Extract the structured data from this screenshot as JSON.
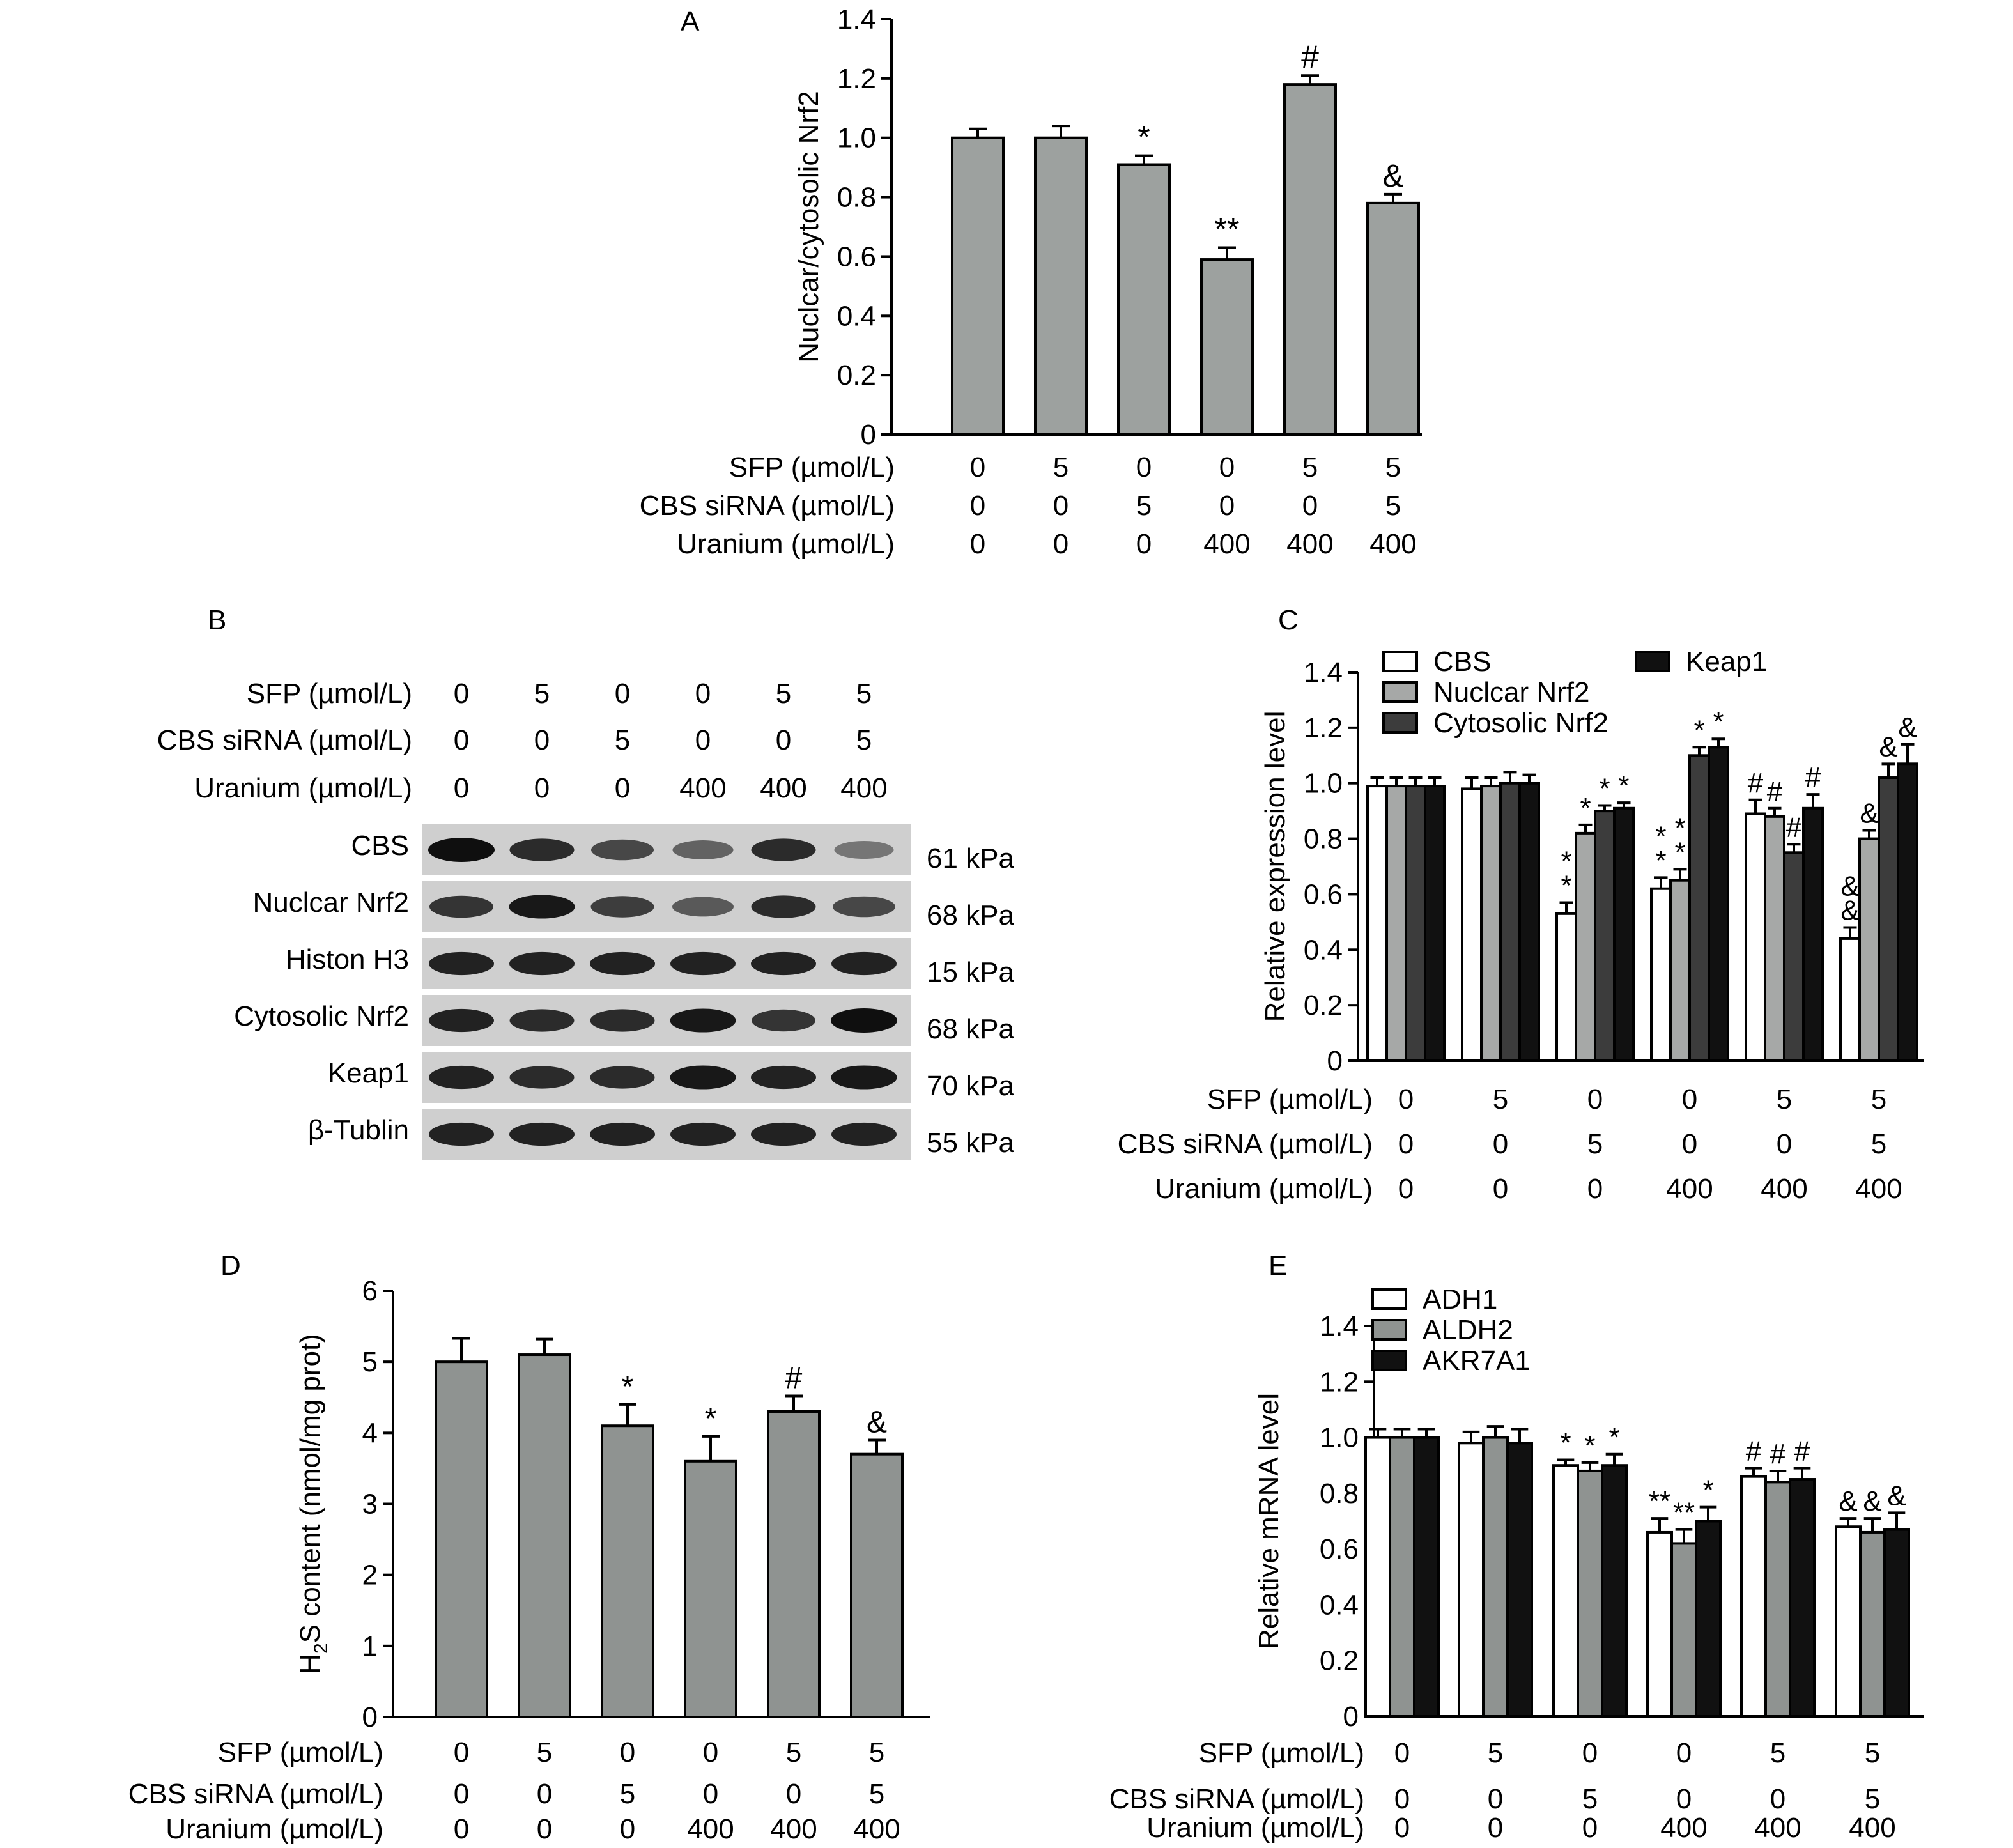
{
  "colors": {
    "bar_gray": "#9da19f",
    "white": "#ffffff",
    "light_gray": "#a6a8a7",
    "dark_gray": "#3c3c3c",
    "black": "#111111",
    "mid_gray": "#8f9391"
  },
  "treatments": {
    "rows": [
      {
        "label": "SFP (µmol/L)",
        "values": [
          "0",
          "5",
          "0",
          "0",
          "5",
          "5"
        ]
      },
      {
        "label": "CBS siRNA (µmol/L)",
        "values": [
          "0",
          "0",
          "5",
          "0",
          "0",
          "5"
        ]
      },
      {
        "label": "Uranium (µmol/L)",
        "values": [
          "0",
          "0",
          "0",
          "400",
          "400",
          "400"
        ]
      }
    ]
  },
  "panels": {
    "A": {
      "letter": "A"
    },
    "B": {
      "letter": "B"
    },
    "C": {
      "letter": "C"
    },
    "D": {
      "letter": "D"
    },
    "E": {
      "letter": "E"
    }
  },
  "western_blot": {
    "bands": [
      {
        "name": "CBS",
        "kda": "61 kPa",
        "intensity": [
          1.0,
          0.85,
          0.7,
          0.55,
          0.85,
          0.45
        ]
      },
      {
        "name": "Nuclcar Nrf2",
        "kda": "68 kPa",
        "intensity": [
          0.8,
          0.95,
          0.75,
          0.6,
          0.85,
          0.7
        ]
      },
      {
        "name": "Histon H3",
        "kda": "15 kPa",
        "intensity": [
          0.9,
          0.9,
          0.9,
          0.9,
          0.9,
          0.9
        ]
      },
      {
        "name": "Cytosolic Nrf2",
        "kda": "68 kPa",
        "intensity": [
          0.9,
          0.85,
          0.85,
          0.95,
          0.8,
          1.0
        ]
      },
      {
        "name": "Keap1",
        "kda": "70 kPa",
        "intensity": [
          0.9,
          0.85,
          0.85,
          0.95,
          0.9,
          0.95
        ]
      },
      {
        "name": "β-Tublin",
        "kda": "55 kPa",
        "intensity": [
          0.9,
          0.9,
          0.9,
          0.9,
          0.9,
          0.9
        ]
      }
    ]
  },
  "chart_data": [
    {
      "panel": "A",
      "type": "bar",
      "ylabel": "Nuclcar/cytosolic Nrf2",
      "ylim": [
        0,
        1.4
      ],
      "yticks": [
        "0",
        "0.2",
        "0.4",
        "0.6",
        "0.8",
        "1.0",
        "1.2",
        "1.4"
      ],
      "series": [
        {
          "values": [
            1.0,
            1.0,
            0.91,
            0.59,
            1.18,
            0.78
          ],
          "errors": [
            0.03,
            0.04,
            0.03,
            0.04,
            0.03,
            0.03
          ],
          "marks": [
            "",
            "",
            "*",
            "**",
            "#",
            "&"
          ]
        }
      ]
    },
    {
      "panel": "C",
      "type": "bar",
      "ylabel": "Relative expression level",
      "ylim": [
        0,
        1.4
      ],
      "yticks": [
        "0",
        "0.2",
        "0.4",
        "0.6",
        "0.8",
        "1.0",
        "1.2",
        "1.4"
      ],
      "legend": "top-left",
      "series": [
        {
          "name": "CBS",
          "values": [
            0.99,
            0.98,
            0.53,
            0.62,
            0.89,
            0.44
          ],
          "errors": [
            0.03,
            0.04,
            0.04,
            0.04,
            0.05,
            0.04
          ],
          "marks": [
            "",
            "",
            "*\n*",
            "*\n*",
            "#",
            "&\n&"
          ]
        },
        {
          "name": "Nuclcar Nrf2",
          "values": [
            0.99,
            0.99,
            0.82,
            0.65,
            0.88,
            0.8
          ],
          "errors": [
            0.03,
            0.03,
            0.03,
            0.04,
            0.03,
            0.03
          ],
          "marks": [
            "",
            "",
            "*",
            "*\n*",
            "#",
            "&"
          ]
        },
        {
          "name": "Cytosolic Nrf2",
          "values": [
            0.99,
            1.0,
            0.9,
            1.1,
            0.75,
            1.02
          ],
          "errors": [
            0.03,
            0.04,
            0.02,
            0.03,
            0.03,
            0.05
          ],
          "marks": [
            "",
            "",
            "*",
            "*",
            "#",
            "&"
          ]
        },
        {
          "name": "Keap1",
          "values": [
            0.99,
            1.0,
            0.91,
            1.13,
            0.91,
            1.07
          ],
          "errors": [
            0.03,
            0.03,
            0.02,
            0.03,
            0.05,
            0.07
          ],
          "marks": [
            "",
            "",
            "*",
            "*",
            "#",
            "&"
          ]
        }
      ]
    },
    {
      "panel": "D",
      "type": "bar",
      "ylabel": "H",
      "ylabel_sub": "2",
      "ylabel_rest": "S content (nmol/mg prot)",
      "ylim": [
        0,
        6
      ],
      "yticks": [
        "0",
        "1",
        "2",
        "3",
        "4",
        "5",
        "6"
      ],
      "series": [
        {
          "values": [
            5.0,
            5.1,
            4.1,
            3.6,
            4.3,
            3.7
          ],
          "errors": [
            0.33,
            0.22,
            0.3,
            0.35,
            0.22,
            0.2
          ],
          "marks": [
            "",
            "",
            "*",
            "*",
            "#",
            "&"
          ]
        }
      ]
    },
    {
      "panel": "E",
      "type": "bar",
      "ylabel": "Relative mRNA level",
      "ylim": [
        0,
        1.4
      ],
      "yticks": [
        "0",
        "0.2",
        "0.4",
        "0.6",
        "0.8",
        "1.0",
        "1.2",
        "1.4"
      ],
      "legend": "top-left",
      "series": [
        {
          "name": "ADH1",
          "values": [
            1.0,
            0.98,
            0.9,
            0.66,
            0.86,
            0.68
          ],
          "errors": [
            0.03,
            0.04,
            0.02,
            0.05,
            0.03,
            0.03
          ],
          "marks": [
            "",
            "",
            "*",
            "**",
            "#",
            "&"
          ]
        },
        {
          "name": "ALDH2",
          "values": [
            1.0,
            1.0,
            0.88,
            0.62,
            0.84,
            0.66
          ],
          "errors": [
            0.03,
            0.04,
            0.03,
            0.05,
            0.04,
            0.05
          ],
          "marks": [
            "",
            "",
            "*",
            "**",
            "#",
            "&"
          ]
        },
        {
          "name": "AKR7A1",
          "values": [
            1.0,
            0.98,
            0.9,
            0.7,
            0.85,
            0.67
          ],
          "errors": [
            0.03,
            0.05,
            0.04,
            0.05,
            0.04,
            0.06
          ],
          "marks": [
            "",
            "",
            "*",
            "*",
            "#",
            "&"
          ]
        }
      ]
    }
  ]
}
